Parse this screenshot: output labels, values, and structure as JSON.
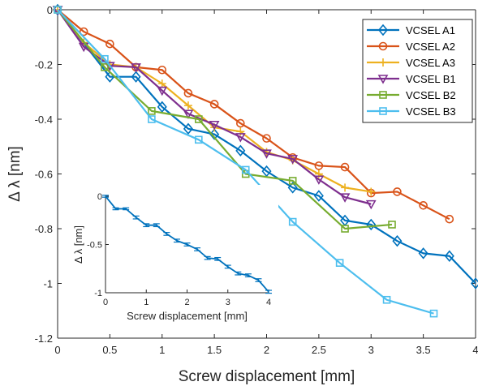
{
  "chart_data": [
    {
      "type": "line",
      "xlabel": "Screw displacement [mm]",
      "ylabel": "Δ λ [nm]",
      "xlim": [
        0,
        4
      ],
      "ylim": [
        -1.2,
        0
      ],
      "xticks": [
        0,
        0.5,
        1,
        1.5,
        2,
        2.5,
        3,
        3.5,
        4
      ],
      "xtick_labels": [
        "0",
        "0.5",
        "1",
        "1.5",
        "2",
        "2.5",
        "3",
        "3.5",
        "4"
      ],
      "yticks": [
        0,
        -0.2,
        -0.4,
        -0.6,
        -0.8,
        -1,
        -1.2
      ],
      "ytick_labels": [
        "0",
        "-0.2",
        "-0.4",
        "-0.6",
        "-0.8",
        "-1",
        "-1.2"
      ],
      "grid": false,
      "legend_position": "top-right",
      "series": [
        {
          "name": "VCSEL A1",
          "color": "#0072BD",
          "marker": "diamond",
          "x": [
            0,
            0.5,
            0.75,
            1.0,
            1.25,
            1.5,
            1.75,
            2.0,
            2.25,
            2.5,
            2.75,
            3.0,
            3.25,
            3.5,
            3.75,
            4.0
          ],
          "y": [
            0,
            -0.245,
            -0.245,
            -0.355,
            -0.435,
            -0.455,
            -0.515,
            -0.59,
            -0.65,
            -0.68,
            -0.77,
            -0.785,
            -0.845,
            -0.89,
            -0.9,
            -1.0
          ]
        },
        {
          "name": "VCSEL A2",
          "color": "#D95319",
          "marker": "circle",
          "x": [
            0,
            0.25,
            0.5,
            0.75,
            1.0,
            1.25,
            1.5,
            1.75,
            2.0,
            2.25,
            2.5,
            2.75,
            3.0,
            3.25,
            3.5,
            3.75
          ],
          "y": [
            0,
            -0.08,
            -0.125,
            -0.21,
            -0.22,
            -0.305,
            -0.345,
            -0.415,
            -0.47,
            -0.54,
            -0.57,
            -0.575,
            -0.67,
            -0.665,
            -0.715,
            -0.765
          ]
        },
        {
          "name": "VCSEL A3",
          "color": "#EDB120",
          "marker": "plus",
          "x": [
            0,
            0.25,
            0.5,
            0.75,
            1.0,
            1.25,
            1.5,
            1.75,
            2.0,
            2.25,
            2.5,
            2.75,
            3.0
          ],
          "y": [
            0,
            -0.12,
            -0.2,
            -0.21,
            -0.27,
            -0.35,
            -0.43,
            -0.445,
            -0.52,
            -0.55,
            -0.6,
            -0.65,
            -0.665
          ]
        },
        {
          "name": "VCSEL B1",
          "color": "#7E2F8E",
          "marker": "triangle-down",
          "x": [
            0,
            0.25,
            0.5,
            0.75,
            1.0,
            1.25,
            1.5,
            1.75,
            2.0,
            2.25,
            2.5,
            2.75,
            3.0
          ],
          "y": [
            0,
            -0.135,
            -0.205,
            -0.21,
            -0.295,
            -0.38,
            -0.42,
            -0.465,
            -0.525,
            -0.545,
            -0.62,
            -0.685,
            -0.71
          ]
        },
        {
          "name": "VCSEL B2",
          "color": "#77AC30",
          "marker": "square",
          "x": [
            0,
            0.45,
            0.9,
            1.35,
            1.8,
            2.25,
            2.75,
            3.2
          ],
          "y": [
            0,
            -0.21,
            -0.37,
            -0.4,
            -0.6,
            -0.625,
            -0.8,
            -0.785
          ]
        },
        {
          "name": "VCSEL B3",
          "color": "#4DBEEE",
          "marker": "square",
          "x": [
            0,
            0.45,
            0.9,
            1.35,
            1.8,
            2.25,
            2.7,
            3.15,
            3.6
          ],
          "y": [
            0,
            -0.18,
            -0.4,
            -0.475,
            -0.585,
            -0.775,
            -0.925,
            -1.06,
            -1.11
          ]
        }
      ]
    },
    {
      "type": "line",
      "xlabel": "Screw displacement [mm]",
      "ylabel": "Δ λ [nm]",
      "xlim": [
        0,
        4
      ],
      "ylim": [
        -1,
        0
      ],
      "xticks": [
        0,
        1,
        2,
        3,
        4
      ],
      "xtick_labels": [
        "0",
        "1",
        "2",
        "3",
        "4"
      ],
      "yticks": [
        0,
        -0.5,
        -1
      ],
      "ytick_labels": [
        "0",
        "-0.5",
        "-1"
      ],
      "grid": false,
      "series": [
        {
          "color": "#0072BD",
          "error_bars": true,
          "x": [
            0,
            0.25,
            0.5,
            0.75,
            1.0,
            1.25,
            1.5,
            1.75,
            2.0,
            2.25,
            2.5,
            2.75,
            3.0,
            3.25,
            3.5,
            3.75,
            4.0
          ],
          "y": [
            0,
            -0.13,
            -0.13,
            -0.22,
            -0.3,
            -0.3,
            -0.39,
            -0.46,
            -0.5,
            -0.55,
            -0.64,
            -0.65,
            -0.73,
            -0.8,
            -0.82,
            -0.87,
            -0.99
          ],
          "err": [
            0.01,
            0.01,
            0.01,
            0.015,
            0.015,
            0.015,
            0.015,
            0.015,
            0.015,
            0.015,
            0.015,
            0.015,
            0.015,
            0.015,
            0.015,
            0.015,
            0.015
          ]
        }
      ]
    }
  ]
}
